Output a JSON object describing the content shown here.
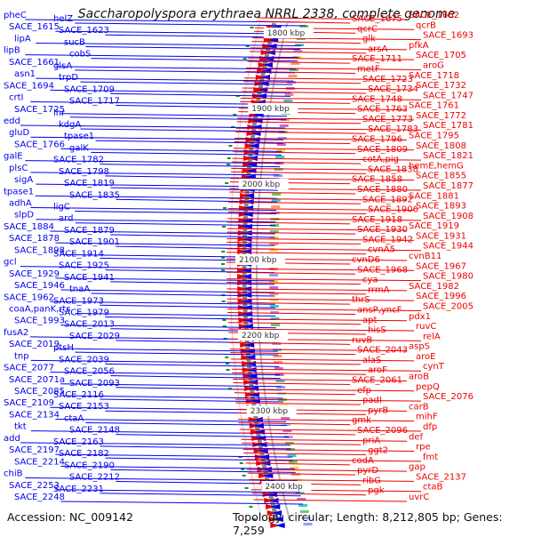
{
  "title": "Saccharopolyspora erythraea NRRL 2338, complete genome",
  "accession": "Accession: NC_009142",
  "summary": "Topology: circular; Length: 8,212,805 bp; Genes: 7,259",
  "colors": {
    "forward": "#0000ee",
    "reverse": "#ee0000",
    "backbone": "#888888",
    "ticks": "#119911"
  },
  "scale_labels": [
    "1800 kbp",
    "1900 kbp",
    "2000 kbp",
    "2100 kbp",
    "2200 kbp",
    "2300 kbp",
    "2400 kbp"
  ],
  "left_labels": [
    "pheC",
    "helZ",
    "SACE_1615",
    "SACE_1623",
    "lipA",
    "sucB",
    "lipB",
    "cobS",
    "SACE_1661",
    "glsA",
    "asn1",
    "trpD",
    "SACE_1694",
    "SACE_1709",
    "crtI",
    "SACE_1717",
    "SACE_1725",
    "lhr",
    "edd",
    "kdgA",
    "gluD",
    "tpase1",
    "SACE_1766",
    "galK",
    "galE",
    "SACE_1782",
    "plsC",
    "SACE_1798",
    "sigA",
    "SACE_1819",
    "tpase1",
    "SACE_1835",
    "adhA",
    "ligC",
    "slpD",
    "ard",
    "SACE_1884",
    "SACE_1879",
    "SACE_1878",
    "SACE_1901",
    "SACE_1898",
    "SACE_1914",
    "gcl",
    "SACE_1925",
    "SACE_1929",
    "SACE_1941",
    "SACE_1946",
    "tnaA",
    "SACE_1962",
    "SACE_1973",
    "coaA,panK,rts",
    "SACE_1979",
    "SACE_1993",
    "SACE_2013",
    "fusA2",
    "SACE_2029",
    "SACE_2019",
    "ptsH",
    "tnp",
    "SACE_2039",
    "SACE_2077",
    "SACE_2056",
    "SACE_2071a",
    "SACE_2093",
    "SACE_2085",
    "SACE_2116",
    "SACE_2109",
    "SACE_2153",
    "SACE_2134",
    "ctaA",
    "tkt",
    "SACE_2148",
    "add",
    "SACE_2163",
    "SACE_2197",
    "SACE_2182",
    "SACE_2214",
    "SACE_2190",
    "chiB",
    "SACE_2212",
    "SACE_2253",
    "SACE_2231",
    "SACE_2248"
  ],
  "right_labels": [
    "SACE_1662",
    "SACE_1675",
    "qcrB",
    "qcrC",
    "SACE_1693",
    "glk",
    "pfkA",
    "arsA",
    "SACE_1705",
    "SACE_1711",
    "aroG",
    "metF",
    "SACE_1718",
    "SACE_1723",
    "SACE_1732",
    "SACE_1734",
    "SACE_1747",
    "SACE_1748",
    "SACE_1761",
    "SACE_1763",
    "SACE_1772",
    "SACE_1773",
    "SACE_1781",
    "SACE_1783",
    "SACE_1795",
    "SACE_1796",
    "SACE_1808",
    "SACE_1809",
    "SACE_1821",
    "cotA,pig",
    "hemE,hemG",
    "SACE_1838",
    "SACE_1855",
    "SACE_1858",
    "SACE_1877",
    "SACE_1880",
    "SACE_1881",
    "SACE_1892",
    "SACE_1893",
    "SACE_1906",
    "SACE_1908",
    "SACE_1918",
    "SACE_1919",
    "SACE_1930",
    "SACE_1931",
    "SACE_1942",
    "SACE_1944",
    "cvnA5",
    "cvnB11",
    "cvnD6",
    "SACE_1967",
    "SACE_1968",
    "SACE_1980",
    "cya",
    "SACE_1982",
    "rrmA",
    "SACE_1996",
    "thrS",
    "SACE_2005",
    "ansP,yncF",
    "pdx1",
    "apt",
    "ruvC",
    "hisS",
    "relA",
    "ruvB",
    "aspS",
    "SACE_2043",
    "aroE",
    "alaS",
    "cynT",
    "aroF",
    "aroB",
    "SACE_2061",
    "pepQ",
    "efp",
    "SACE_2076",
    "padI",
    "carB",
    "pyrB",
    "mihF",
    "gmk",
    "dfp",
    "SACE_2096",
    "def",
    "priA",
    "rpe",
    "ggt2",
    "fmt",
    "codA",
    "gap",
    "pyrD",
    "SACE_2137",
    "ribG",
    "ctaB",
    "pgk",
    "uvrC"
  ]
}
